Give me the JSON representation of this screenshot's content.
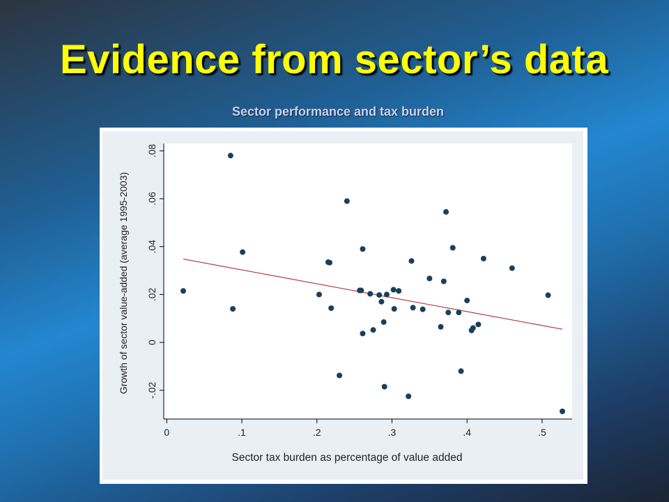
{
  "slide": {
    "title": "Evidence from sector’s data"
  },
  "colors": {
    "point": "#1a3f5c",
    "fit_line": "#b03a3a",
    "plot_bg": "#ffffff",
    "outer_bg": "#eaeff3",
    "title": "#ffff00"
  },
  "chart_data": {
    "type": "scatter",
    "title": "Sector performance and tax burden",
    "xlabel": "Sector tax burden as percentage of value added",
    "ylabel": "Growth of sector value-added (average 1995-2003)",
    "xlim": [
      -0.004,
      0.54
    ],
    "ylim": [
      -0.032,
      0.083
    ],
    "x_ticks": [
      0,
      0.1,
      0.2,
      0.3,
      0.4,
      0.5
    ],
    "x_tick_labels": [
      "0",
      ".1",
      ".2",
      ".3",
      ".4",
      ".5"
    ],
    "y_ticks": [
      -0.02,
      0,
      0.02,
      0.04,
      0.06,
      0.08
    ],
    "y_tick_labels": [
      "-.02",
      "0",
      ".02",
      ".04",
      ".06",
      ".08"
    ],
    "grid": false,
    "points": [
      {
        "x": 0.022,
        "y": 0.0215
      },
      {
        "x": 0.085,
        "y": 0.078
      },
      {
        "x": 0.088,
        "y": 0.014
      },
      {
        "x": 0.101,
        "y": 0.0377
      },
      {
        "x": 0.203,
        "y": 0.02
      },
      {
        "x": 0.215,
        "y": 0.0335
      },
      {
        "x": 0.217,
        "y": 0.0333
      },
      {
        "x": 0.219,
        "y": 0.0143
      },
      {
        "x": 0.23,
        "y": -0.0138
      },
      {
        "x": 0.24,
        "y": 0.059
      },
      {
        "x": 0.257,
        "y": 0.0217
      },
      {
        "x": 0.259,
        "y": 0.0217
      },
      {
        "x": 0.261,
        "y": 0.039
      },
      {
        "x": 0.261,
        "y": 0.0037
      },
      {
        "x": 0.271,
        "y": 0.0203
      },
      {
        "x": 0.275,
        "y": 0.0052
      },
      {
        "x": 0.283,
        "y": 0.0198
      },
      {
        "x": 0.286,
        "y": 0.017
      },
      {
        "x": 0.289,
        "y": 0.0085
      },
      {
        "x": 0.29,
        "y": -0.0185
      },
      {
        "x": 0.293,
        "y": 0.02
      },
      {
        "x": 0.302,
        "y": 0.022
      },
      {
        "x": 0.303,
        "y": 0.014
      },
      {
        "x": 0.309,
        "y": 0.0215
      },
      {
        "x": 0.322,
        "y": -0.0225
      },
      {
        "x": 0.326,
        "y": 0.034
      },
      {
        "x": 0.328,
        "y": 0.0145
      },
      {
        "x": 0.341,
        "y": 0.0138
      },
      {
        "x": 0.35,
        "y": 0.0267
      },
      {
        "x": 0.365,
        "y": 0.0065
      },
      {
        "x": 0.369,
        "y": 0.0255
      },
      {
        "x": 0.372,
        "y": 0.0545
      },
      {
        "x": 0.375,
        "y": 0.0125
      },
      {
        "x": 0.381,
        "y": 0.0395
      },
      {
        "x": 0.389,
        "y": 0.0125
      },
      {
        "x": 0.392,
        "y": -0.012
      },
      {
        "x": 0.4,
        "y": 0.0175
      },
      {
        "x": 0.406,
        "y": 0.005
      },
      {
        "x": 0.408,
        "y": 0.006
      },
      {
        "x": 0.415,
        "y": 0.0075
      },
      {
        "x": 0.422,
        "y": 0.035
      },
      {
        "x": 0.46,
        "y": 0.031
      },
      {
        "x": 0.508,
        "y": 0.0197
      },
      {
        "x": 0.527,
        "y": -0.0288
      }
    ],
    "fit_line": {
      "x": [
        0.022,
        0.527
      ],
      "y": [
        0.0348,
        0.0055
      ]
    }
  }
}
